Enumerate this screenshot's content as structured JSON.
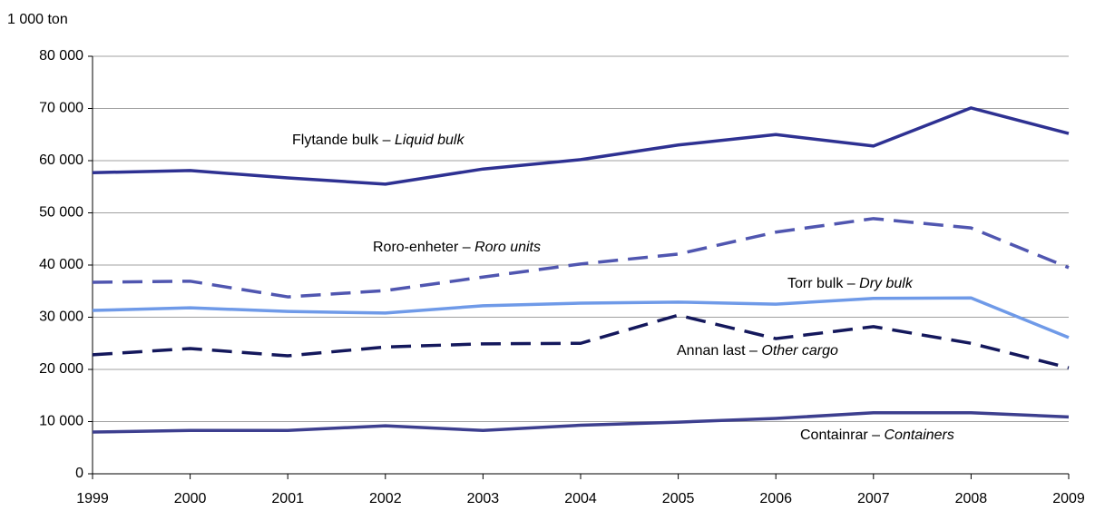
{
  "chart_data": {
    "type": "line",
    "y_axis_label": "1 000 ton",
    "categories": [
      "1999",
      "2000",
      "2001",
      "2002",
      "2003",
      "2004",
      "2005",
      "2006",
      "2007",
      "2008",
      "2009"
    ],
    "series": [
      {
        "label_parts": [
          "Flytande bulk – ",
          "Liquid bulk"
        ],
        "color": "#2e3192",
        "dashed": false,
        "values": [
          57700,
          58100,
          56700,
          55500,
          58400,
          60200,
          63000,
          65000,
          62800,
          70100,
          65200
        ]
      },
      {
        "label_parts": [
          "Roro-enheter – ",
          "Roro units"
        ],
        "color": "#5056b0",
        "dashed": true,
        "values": [
          36700,
          36900,
          33900,
          35100,
          37700,
          40200,
          42100,
          46300,
          48900,
          47100,
          39500
        ]
      },
      {
        "label_parts": [
          "Torr bulk – ",
          "Dry bulk"
        ],
        "color": "#6f9ae8",
        "dashed": false,
        "values": [
          31300,
          31800,
          31100,
          30800,
          32200,
          32700,
          32900,
          32500,
          33600,
          33700,
          26100
        ]
      },
      {
        "label_parts": [
          "Annan last – ",
          "Other cargo"
        ],
        "color": "#14185c",
        "dashed": true,
        "values": [
          22800,
          24000,
          22600,
          24300,
          24900,
          25000,
          30400,
          25900,
          28200,
          25000,
          20300
        ]
      },
      {
        "label_parts": [
          "Containrar – ",
          "Containers"
        ],
        "color": "#3d3f8f",
        "dashed": false,
        "values": [
          8000,
          8300,
          8300,
          9200,
          8300,
          9300,
          9900,
          10600,
          11700,
          11700,
          10900
        ]
      }
    ],
    "ylim": [
      0,
      80000
    ],
    "yticks": [
      0,
      {
        "value": 10000,
        "label": "10 000"
      },
      {
        "value": 20000,
        "label": "20 000"
      },
      {
        "value": 30000,
        "label": "30 000"
      },
      {
        "value": 40000,
        "label": "40 000"
      },
      {
        "value": 50000,
        "label": "50 000"
      },
      {
        "value": 60000,
        "label": "60 000"
      },
      {
        "value": 70000,
        "label": "70 000"
      },
      {
        "value": 80000,
        "label": "80 000"
      }
    ],
    "grid": true
  }
}
